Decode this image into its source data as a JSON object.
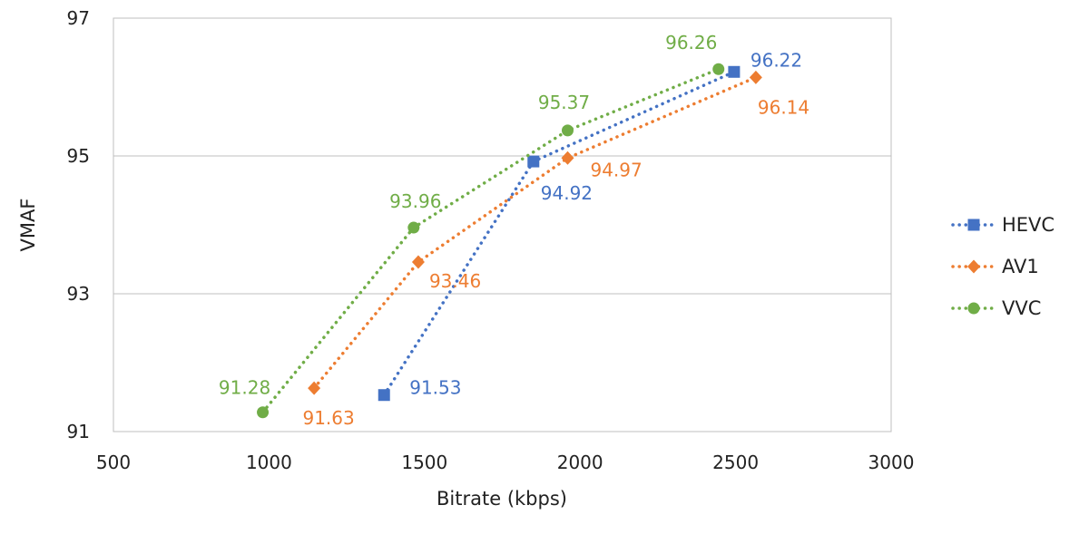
{
  "chart_data": {
    "type": "line",
    "xlabel": "Bitrate (kbps)",
    "ylabel": "VMAF",
    "xlim": [
      500,
      3000
    ],
    "ylim": [
      91,
      97
    ],
    "x_ticks": [
      500,
      1000,
      1500,
      2000,
      2500,
      3000
    ],
    "y_ticks": [
      91,
      93,
      95,
      97
    ],
    "grid": "horizontal",
    "legend_position": "right",
    "series": [
      {
        "name": "HEVC",
        "color": "#4472C4",
        "marker": "square",
        "points": [
          {
            "x": 1370,
            "y": 91.53,
            "label": "91.53"
          },
          {
            "x": 1850,
            "y": 94.92,
            "label": "94.92"
          },
          {
            "x": 2495,
            "y": 96.22,
            "label": "96.22"
          }
        ]
      },
      {
        "name": "AV1",
        "color": "#ED7D31",
        "marker": "diamond",
        "points": [
          {
            "x": 1145,
            "y": 91.63,
            "label": "91.63"
          },
          {
            "x": 1480,
            "y": 93.46,
            "label": "93.46"
          },
          {
            "x": 1960,
            "y": 94.97,
            "label": "94.97"
          },
          {
            "x": 2565,
            "y": 96.14,
            "label": "96.14"
          }
        ]
      },
      {
        "name": "VVC",
        "color": "#70AD47",
        "marker": "circle",
        "points": [
          {
            "x": 980,
            "y": 91.28,
            "label": "91.28"
          },
          {
            "x": 1465,
            "y": 93.96,
            "label": "93.96"
          },
          {
            "x": 1960,
            "y": 95.37,
            "label": "95.37"
          },
          {
            "x": 2445,
            "y": 96.26,
            "label": "96.26"
          }
        ]
      }
    ]
  }
}
